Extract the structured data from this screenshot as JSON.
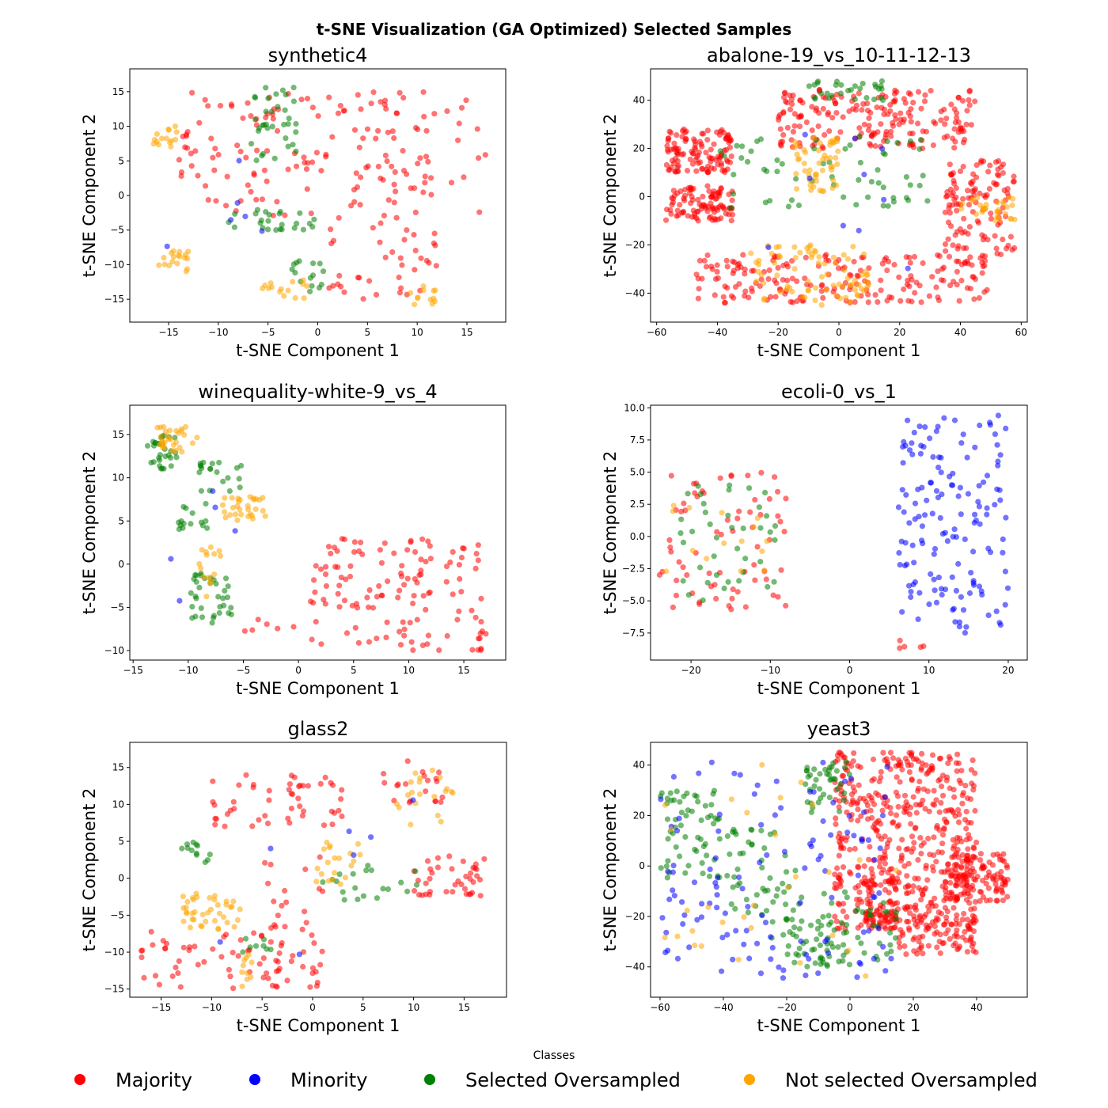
{
  "figure": {
    "title": "t-SNE Visualization (GA Optimized) Selected Samples"
  },
  "legend": {
    "title": "Classes",
    "items": [
      {
        "label": "Majority",
        "color": "#ff0000"
      },
      {
        "label": "Minority",
        "color": "#0000ff"
      },
      {
        "label": "Selected Oversampled",
        "color": "#008000"
      },
      {
        "label": "Not selected Oversampled",
        "color": "#ffa500"
      }
    ]
  },
  "colors": {
    "majority": "#ff0000",
    "minority": "#0000ff",
    "selected": "#008000",
    "not_selected": "#ffa500"
  },
  "chart_data": [
    {
      "type": "scatter",
      "title": "synthetic4",
      "xlabel": "t-SNE Component 1",
      "ylabel": "t-SNE Component 2",
      "xlim": [
        -18.9,
        18.9
      ],
      "ylim": [
        -18.3,
        18.3
      ],
      "xticks": [
        -15,
        -10,
        -5,
        0,
        5,
        10,
        15
      ],
      "yticks": [
        -15,
        -10,
        -5,
        0,
        5,
        10,
        15
      ],
      "clusters": [
        {
          "class": "majority",
          "count": 150,
          "bounds": [
            -14,
            17,
            -3,
            15
          ]
        },
        {
          "class": "majority",
          "count": 40,
          "bounds": [
            1,
            12,
            -15,
            -3
          ]
        },
        {
          "class": "majority",
          "count": 10,
          "bounds": [
            -14,
            -10,
            3,
            11
          ]
        },
        {
          "class": "selected",
          "count": 35,
          "bounds": [
            -7,
            -2,
            5,
            16
          ]
        },
        {
          "class": "selected",
          "count": 25,
          "bounds": [
            -9,
            0,
            -5,
            -2
          ]
        },
        {
          "class": "selected",
          "count": 15,
          "bounds": [
            -3,
            1,
            -14,
            -9
          ]
        },
        {
          "class": "not_selected",
          "count": 15,
          "bounds": [
            -17,
            -14,
            7,
            10
          ]
        },
        {
          "class": "not_selected",
          "count": 18,
          "bounds": [
            -16,
            -13,
            -11,
            -8
          ]
        },
        {
          "class": "not_selected",
          "count": 15,
          "bounds": [
            -6,
            -1,
            -15,
            -12
          ]
        },
        {
          "class": "not_selected",
          "count": 12,
          "bounds": [
            9,
            12,
            -16,
            -13
          ]
        },
        {
          "class": "minority",
          "count": 6,
          "bounds": [
            -16,
            -5,
            -11,
            16
          ]
        }
      ]
    },
    {
      "type": "scatter",
      "title": "abalone-19_vs_10-11-12-13",
      "xlabel": "t-SNE Component 1",
      "ylabel": "t-SNE Component 2",
      "xlim": [
        -62,
        62
      ],
      "ylim": [
        -52,
        53
      ],
      "xticks": [
        -60,
        -40,
        -20,
        0,
        20,
        40,
        60
      ],
      "yticks": [
        -40,
        -20,
        0,
        20,
        40
      ],
      "clusters": [
        {
          "class": "majority",
          "count": 200,
          "bounds": [
            -20,
            45,
            20,
            45
          ]
        },
        {
          "class": "majority",
          "count": 120,
          "bounds": [
            -57,
            -35,
            10,
            28
          ]
        },
        {
          "class": "majority",
          "count": 100,
          "bounds": [
            -57,
            -35,
            -10,
            5
          ]
        },
        {
          "class": "majority",
          "count": 200,
          "bounds": [
            -48,
            50,
            -44,
            -24
          ]
        },
        {
          "class": "majority",
          "count": 120,
          "bounds": [
            35,
            58,
            -25,
            15
          ]
        },
        {
          "class": "selected",
          "count": 60,
          "bounds": [
            -40,
            30,
            -5,
            25
          ]
        },
        {
          "class": "selected",
          "count": 30,
          "bounds": [
            -10,
            15,
            40,
            48
          ]
        },
        {
          "class": "not_selected",
          "count": 80,
          "bounds": [
            -30,
            10,
            -45,
            -20
          ]
        },
        {
          "class": "not_selected",
          "count": 50,
          "bounds": [
            -15,
            0,
            0,
            25
          ]
        },
        {
          "class": "not_selected",
          "count": 30,
          "bounds": [
            40,
            58,
            -10,
            0
          ]
        },
        {
          "class": "minority",
          "count": 10,
          "bounds": [
            -25,
            58,
            -47,
            48
          ]
        }
      ]
    },
    {
      "type": "scatter",
      "title": "winequality-white-9_vs_4",
      "xlabel": "t-SNE Component 1",
      "ylabel": "t-SNE Component 2",
      "xlim": [
        -15.3,
        18.8
      ],
      "ylim": [
        -11.1,
        18.4
      ],
      "xticks": [
        -15,
        -10,
        -5,
        0,
        5,
        10,
        15
      ],
      "yticks": [
        -10,
        -5,
        0,
        5,
        10,
        15
      ],
      "clusters": [
        {
          "class": "majority",
          "count": 130,
          "bounds": [
            1,
            17,
            -10,
            3
          ]
        },
        {
          "class": "majority",
          "count": 6,
          "bounds": [
            -6,
            0,
            -8,
            -6
          ]
        },
        {
          "class": "selected",
          "count": 30,
          "bounds": [
            -14,
            -11,
            11,
            15
          ]
        },
        {
          "class": "selected",
          "count": 20,
          "bounds": [
            -9,
            -5,
            8,
            12
          ]
        },
        {
          "class": "selected",
          "count": 15,
          "bounds": [
            -11,
            -8,
            4,
            7
          ]
        },
        {
          "class": "selected",
          "count": 35,
          "bounds": [
            -10,
            -6,
            -7,
            -1
          ]
        },
        {
          "class": "not_selected",
          "count": 30,
          "bounds": [
            -13,
            -9,
            13,
            16
          ]
        },
        {
          "class": "not_selected",
          "count": 30,
          "bounds": [
            -7,
            -3,
            5,
            8
          ]
        },
        {
          "class": "not_selected",
          "count": 15,
          "bounds": [
            -9,
            -7,
            -4,
            2
          ]
        },
        {
          "class": "minority",
          "count": 5,
          "bounds": [
            -12,
            -4,
            -7,
            16
          ]
        }
      ]
    },
    {
      "type": "scatter",
      "title": "ecoli-0_vs_1",
      "xlabel": "t-SNE Component 1",
      "ylabel": "t-SNE Component 2",
      "xlim": [
        -25.1,
        22.4
      ],
      "ylim": [
        -9.6,
        10.2
      ],
      "xticks": [
        -20,
        -10,
        0,
        10,
        20
      ],
      "yticks": [
        -7.5,
        -5.0,
        -2.5,
        0.0,
        2.5,
        5.0,
        7.5,
        10.0
      ],
      "clusters": [
        {
          "class": "majority",
          "count": 70,
          "bounds": [
            -24,
            -8,
            -6,
            5
          ]
        },
        {
          "class": "selected",
          "count": 40,
          "bounds": [
            -22,
            -9,
            -5,
            4
          ]
        },
        {
          "class": "not_selected",
          "count": 15,
          "bounds": [
            -24,
            -9,
            -3,
            3
          ]
        },
        {
          "class": "minority",
          "count": 150,
          "bounds": [
            6,
            20,
            -7.5,
            9.5
          ]
        },
        {
          "class": "majority",
          "count": 5,
          "bounds": [
            6,
            11,
            -8.8,
            -7.8
          ]
        }
      ]
    },
    {
      "type": "scatter",
      "title": "glass2",
      "xlabel": "t-SNE Component 1",
      "ylabel": "t-SNE Component 2",
      "xlim": [
        -18.1,
        19.2
      ],
      "ylim": [
        -16.1,
        18.4
      ],
      "xticks": [
        -15,
        -10,
        -5,
        0,
        5,
        10,
        15
      ],
      "yticks": [
        -15,
        -10,
        -5,
        0,
        5,
        10,
        15
      ],
      "clusters": [
        {
          "class": "majority",
          "count": 50,
          "bounds": [
            -10,
            3,
            7,
            14
          ]
        },
        {
          "class": "majority",
          "count": 45,
          "bounds": [
            -17,
            -3,
            -15,
            -7
          ]
        },
        {
          "class": "majority",
          "count": 30,
          "bounds": [
            -5,
            1,
            -15,
            -6
          ]
        },
        {
          "class": "majority",
          "count": 40,
          "bounds": [
            10,
            17,
            -3,
            3
          ]
        },
        {
          "class": "majority",
          "count": 20,
          "bounds": [
            7,
            13,
            10,
            16
          ]
        },
        {
          "class": "majority",
          "count": 15,
          "bounds": [
            -5,
            1,
            -7,
            3
          ]
        },
        {
          "class": "selected",
          "count": 12,
          "bounds": [
            -13,
            -10,
            2,
            6
          ]
        },
        {
          "class": "selected",
          "count": 20,
          "bounds": [
            1,
            12,
            -3,
            2
          ]
        },
        {
          "class": "selected",
          "count": 8,
          "bounds": [
            -7,
            -4,
            -10,
            -8
          ]
        },
        {
          "class": "not_selected",
          "count": 40,
          "bounds": [
            -13,
            -7,
            -7,
            -2
          ]
        },
        {
          "class": "not_selected",
          "count": 20,
          "bounds": [
            0,
            5,
            -1,
            5
          ]
        },
        {
          "class": "not_selected",
          "count": 20,
          "bounds": [
            8,
            14,
            7,
            15
          ]
        },
        {
          "class": "not_selected",
          "count": 10,
          "bounds": [
            -7,
            -6,
            -15,
            -10
          ]
        },
        {
          "class": "minority",
          "count": 7,
          "bounds": [
            -12,
            14,
            -15,
            16
          ]
        }
      ]
    },
    {
      "type": "scatter",
      "title": "yeast3",
      "xlabel": "t-SNE Component 1",
      "ylabel": "t-SNE Component 2",
      "xlim": [
        -63,
        56
      ],
      "ylim": [
        -52,
        49
      ],
      "xticks": [
        -60,
        -40,
        -20,
        0,
        20,
        40
      ],
      "yticks": [
        -40,
        -20,
        0,
        20,
        40
      ],
      "clusters": [
        {
          "class": "majority",
          "count": 500,
          "bounds": [
            -5,
            40,
            -25,
            45
          ]
        },
        {
          "class": "majority",
          "count": 120,
          "bounds": [
            30,
            50,
            -15,
            5
          ]
        },
        {
          "class": "majority",
          "count": 80,
          "bounds": [
            15,
            40,
            -35,
            -20
          ]
        },
        {
          "class": "majority",
          "count": 60,
          "bounds": [
            5,
            15,
            -25,
            -5
          ]
        },
        {
          "class": "selected",
          "count": 60,
          "bounds": [
            -60,
            -40,
            -5,
            30
          ]
        },
        {
          "class": "selected",
          "count": 50,
          "bounds": [
            -40,
            -15,
            -20,
            15
          ]
        },
        {
          "class": "selected",
          "count": 40,
          "bounds": [
            -25,
            -5,
            -40,
            -20
          ]
        },
        {
          "class": "selected",
          "count": 40,
          "bounds": [
            -15,
            0,
            20,
            42
          ]
        },
        {
          "class": "selected",
          "count": 50,
          "bounds": [
            -10,
            15,
            -40,
            -10
          ]
        },
        {
          "class": "minority",
          "count": 120,
          "bounds": [
            -60,
            15,
            -45,
            42
          ]
        },
        {
          "class": "not_selected",
          "count": 30,
          "bounds": [
            -60,
            15,
            -45,
            42
          ]
        }
      ]
    }
  ]
}
